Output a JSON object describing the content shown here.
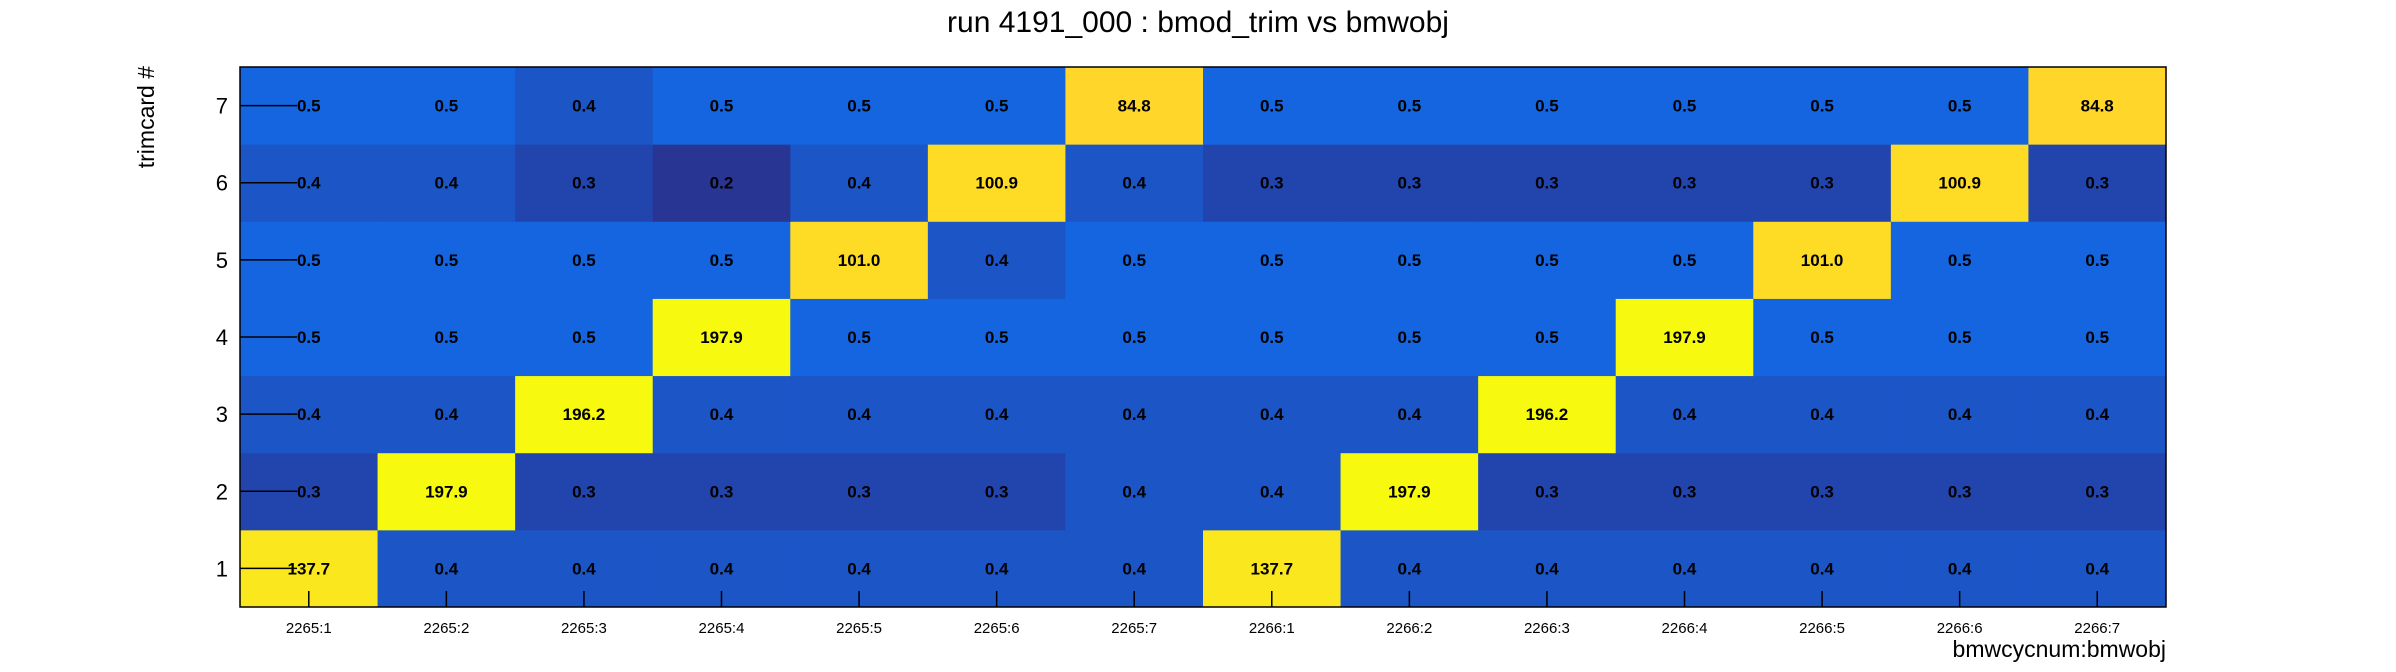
{
  "colors": {
    "background": "#ffffff",
    "frame": "#000000",
    "palette_low": "#283593",
    "palette_mid": "#1565e0",
    "palette_high": "#ffd42a",
    "palette_peak": "#f7fa0f"
  },
  "chart_data": {
    "type": "heatmap",
    "title": "run 4191_000 : bmod_trim vs bmwobj",
    "xlabel": "bmwcycnum:bmwobj",
    "ylabel": "trimcard #",
    "x_categories": [
      "2265:1",
      "2265:2",
      "2265:3",
      "2265:4",
      "2265:5",
      "2265:6",
      "2265:7",
      "2266:1",
      "2266:2",
      "2266:3",
      "2266:4",
      "2266:5",
      "2266:6",
      "2266:7"
    ],
    "y_categories": [
      "1",
      "2",
      "3",
      "4",
      "5",
      "6",
      "7"
    ],
    "values": [
      [
        "137.7",
        "0.4",
        "0.4",
        "0.4",
        "0.4",
        "0.4",
        "0.4",
        "137.7",
        "0.4",
        "0.4",
        "0.4",
        "0.4",
        "0.4",
        "0.4"
      ],
      [
        "0.3",
        "197.9",
        "0.3",
        "0.3",
        "0.3",
        "0.3",
        "0.4",
        "0.4",
        "197.9",
        "0.3",
        "0.3",
        "0.3",
        "0.3",
        "0.3"
      ],
      [
        "0.4",
        "0.4",
        "196.2",
        "0.4",
        "0.4",
        "0.4",
        "0.4",
        "0.4",
        "0.4",
        "196.2",
        "0.4",
        "0.4",
        "0.4",
        "0.4"
      ],
      [
        "0.5",
        "0.5",
        "0.5",
        "197.9",
        "0.5",
        "0.5",
        "0.5",
        "0.5",
        "0.5",
        "0.5",
        "197.9",
        "0.5",
        "0.5",
        "0.5"
      ],
      [
        "0.5",
        "0.5",
        "0.5",
        "0.5",
        "101.0",
        "0.4",
        "0.5",
        "0.5",
        "0.5",
        "0.5",
        "0.5",
        "101.0",
        "0.5",
        "0.5"
      ],
      [
        "0.4",
        "0.4",
        "0.3",
        "0.2",
        "0.4",
        "100.9",
        "0.4",
        "0.3",
        "0.3",
        "0.3",
        "0.3",
        "0.3",
        "100.9",
        "0.3"
      ],
      [
        "0.5",
        "0.5",
        "0.4",
        "0.5",
        "0.5",
        "0.5",
        "84.8",
        "0.5",
        "0.5",
        "0.5",
        "0.5",
        "0.5",
        "0.5",
        "84.8"
      ]
    ],
    "row_order": "bottom-to-top",
    "grid": false,
    "legend": "none"
  }
}
